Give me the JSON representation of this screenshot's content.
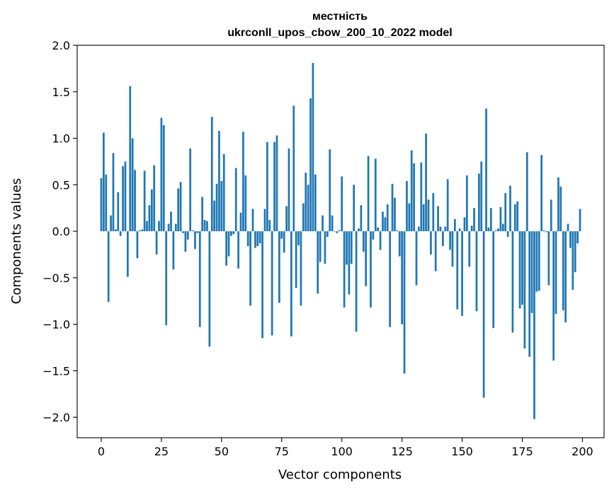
{
  "chart_data": {
    "type": "bar",
    "title": "местність",
    "subtitle": "ukrconll_upos_cbow_200_10_2022 model",
    "xlabel": "Vector components",
    "ylabel": "Components values",
    "xlim": [
      -10,
      209
    ],
    "ylim": [
      -2.22,
      2.0
    ],
    "xticks": [
      0,
      25,
      50,
      75,
      100,
      125,
      150,
      175,
      200
    ],
    "yticks": [
      -2.0,
      -1.5,
      -1.0,
      -0.5,
      0.0,
      0.5,
      1.0,
      1.5,
      2.0
    ],
    "ytick_labels": [
      "−2.0",
      "−1.5",
      "−1.0",
      "−0.5",
      "0.0",
      "0.5",
      "1.0",
      "1.5",
      "2.0"
    ],
    "bar_color": "#1f77b4",
    "grid": false,
    "x": [
      0,
      1,
      2,
      3,
      4,
      5,
      6,
      7,
      8,
      9,
      10,
      11,
      12,
      13,
      14,
      15,
      16,
      17,
      18,
      19,
      20,
      21,
      22,
      23,
      24,
      25,
      26,
      27,
      28,
      29,
      30,
      31,
      32,
      33,
      34,
      35,
      36,
      37,
      38,
      39,
      40,
      41,
      42,
      43,
      44,
      45,
      46,
      47,
      48,
      49,
      50,
      51,
      52,
      53,
      54,
      55,
      56,
      57,
      58,
      59,
      60,
      61,
      62,
      63,
      64,
      65,
      66,
      67,
      68,
      69,
      70,
      71,
      72,
      73,
      74,
      75,
      76,
      77,
      78,
      79,
      80,
      81,
      82,
      83,
      84,
      85,
      86,
      87,
      88,
      89,
      90,
      91,
      92,
      93,
      94,
      95,
      96,
      97,
      98,
      99,
      100,
      101,
      102,
      103,
      104,
      105,
      106,
      107,
      108,
      109,
      110,
      111,
      112,
      113,
      114,
      115,
      116,
      117,
      118,
      119,
      120,
      121,
      122,
      123,
      124,
      125,
      126,
      127,
      128,
      129,
      130,
      131,
      132,
      133,
      134,
      135,
      136,
      137,
      138,
      139,
      140,
      141,
      142,
      143,
      144,
      145,
      146,
      147,
      148,
      149,
      150,
      151,
      152,
      153,
      154,
      155,
      156,
      157,
      158,
      159,
      160,
      161,
      162,
      163,
      164,
      165,
      166,
      167,
      168,
      169,
      170,
      171,
      172,
      173,
      174,
      175,
      176,
      177,
      178,
      179,
      180,
      181,
      182,
      183,
      184,
      185,
      186,
      187,
      188,
      189,
      190,
      191,
      192,
      193,
      194,
      195,
      196,
      197,
      198,
      199
    ],
    "values": [
      0.57,
      1.06,
      0.61,
      -0.76,
      0.17,
      0.84,
      0.02,
      0.42,
      -0.05,
      0.7,
      0.75,
      -0.49,
      1.56,
      1.0,
      0.66,
      -0.29,
      0.01,
      0.02,
      0.65,
      0.11,
      0.28,
      0.45,
      0.71,
      -0.25,
      0.11,
      1.22,
      1.14,
      -1.01,
      0.08,
      0.21,
      -0.41,
      0.08,
      0.46,
      0.53,
      -0.02,
      -0.22,
      -0.09,
      0.89,
      0.01,
      -0.19,
      -0.02,
      -1.03,
      0.37,
      0.12,
      0.11,
      -1.24,
      1.23,
      0.33,
      0.51,
      1.08,
      0.54,
      0.83,
      -0.37,
      -0.27,
      -0.05,
      -0.03,
      0.68,
      -0.4,
      0.2,
      1.07,
      0.6,
      -0.16,
      -0.8,
      0.24,
      -0.18,
      -0.16,
      -0.13,
      -1.15,
      0.24,
      0.96,
      0.12,
      -1.12,
      0.96,
      1.03,
      -0.77,
      -0.08,
      -0.23,
      0.27,
      0.89,
      -1.13,
      1.35,
      -0.61,
      -0.15,
      -0.8,
      0.3,
      0.63,
      0.5,
      1.43,
      1.81,
      0.61,
      -0.67,
      -0.33,
      0.17,
      -0.35,
      -0.06,
      0.88,
      0.17,
      0.0,
      -0.02,
      0.01,
      0.59,
      -0.82,
      -0.36,
      -0.68,
      -0.35,
      0.5,
      -1.08,
      0.03,
      0.28,
      -0.22,
      -0.59,
      0.81,
      -0.82,
      -0.09,
      0.78,
      0.04,
      -0.2,
      0.21,
      0.15,
      0.29,
      -1.03,
      0.51,
      0.36,
      0.01,
      -0.27,
      -1.0,
      -1.53,
      0.54,
      0.3,
      0.87,
      0.73,
      -0.58,
      0.05,
      0.74,
      0.29,
      1.05,
      0.34,
      -0.25,
      0.41,
      -0.43,
      0.27,
      0.05,
      -0.16,
      0.05,
      0.56,
      -0.2,
      -0.38,
      0.13,
      -0.84,
      0.03,
      -0.91,
      0.15,
      0.6,
      -0.38,
      0.06,
      0.25,
      -0.86,
      0.62,
      0.75,
      -1.79,
      1.32,
      0.04,
      0.25,
      -1.04,
      0.01,
      0.03,
      0.26,
      0.08,
      0.41,
      -0.06,
      0.49,
      -1.09,
      0.29,
      0.32,
      -0.83,
      -0.79,
      -1.26,
      0.85,
      -1.35,
      -0.88,
      -2.02,
      -0.65,
      -0.64,
      0.82,
      0.01,
      -0.01,
      -0.58,
      0.34,
      -1.39,
      -0.89,
      0.58,
      0.48,
      -0.85,
      -0.98,
      0.08,
      -0.18,
      -0.63,
      -0.44,
      -0.13,
      0.24
    ]
  }
}
